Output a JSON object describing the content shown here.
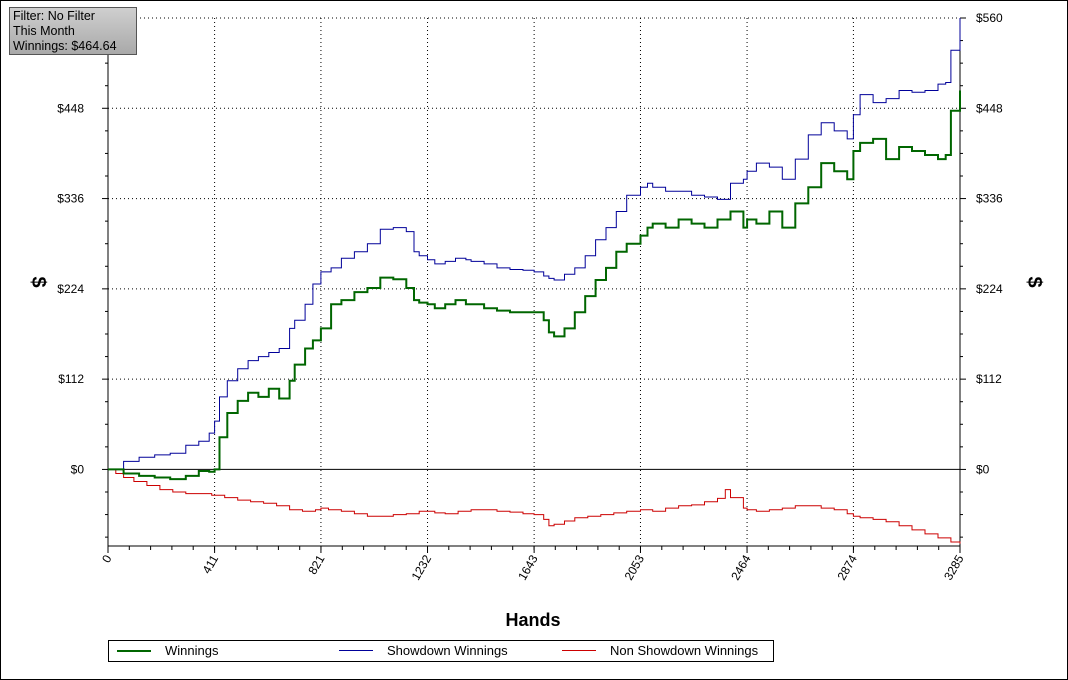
{
  "info_box": {
    "lines": [
      "Filter: No Filter",
      "This Month",
      "Winnings: $464.64"
    ]
  },
  "legend": {
    "items": [
      {
        "label": "Winnings",
        "color": "#006600"
      },
      {
        "label": "Showdown Winnings",
        "color": "#000099"
      },
      {
        "label": "Non Showdown Winnings",
        "color": "#cc0000"
      }
    ]
  },
  "chart_data": {
    "type": "line",
    "xlabel": "Hands",
    "ylabel": "$",
    "xlim": [
      0,
      3285
    ],
    "ylim": [
      -95,
      560
    ],
    "x_ticks": [
      "0",
      "411",
      "821",
      "1232",
      "1643",
      "2053",
      "2464",
      "2874",
      "3285"
    ],
    "y_ticks": [
      {
        "value": 0,
        "label": "$0"
      },
      {
        "value": 112,
        "label": "$112"
      },
      {
        "value": 224,
        "label": "$224"
      },
      {
        "value": 336,
        "label": "$336"
      },
      {
        "value": 448,
        "label": "$448"
      },
      {
        "value": 560,
        "label": "$560"
      }
    ],
    "grid": true,
    "legend_position": "bottom",
    "series": [
      {
        "name": "Winnings",
        "color": "#006600",
        "x": [
          0,
          60,
          120,
          180,
          240,
          300,
          350,
          390,
          411,
          430,
          460,
          500,
          540,
          580,
          620,
          660,
          700,
          720,
          760,
          790,
          821,
          860,
          900,
          950,
          1000,
          1050,
          1100,
          1150,
          1180,
          1200,
          1232,
          1260,
          1300,
          1340,
          1380,
          1400,
          1450,
          1500,
          1550,
          1600,
          1643,
          1680,
          1700,
          1720,
          1760,
          1800,
          1840,
          1880,
          1920,
          1960,
          2000,
          2053,
          2080,
          2100,
          2150,
          2200,
          2250,
          2300,
          2350,
          2400,
          2450,
          2464,
          2500,
          2550,
          2600,
          2650,
          2700,
          2750,
          2800,
          2850,
          2874,
          2900,
          2950,
          3000,
          3050,
          3100,
          3150,
          3200,
          3230,
          3250,
          3285
        ],
        "y": [
          0,
          -5,
          -8,
          -10,
          -12,
          -8,
          -2,
          -3,
          0,
          40,
          70,
          85,
          95,
          90,
          100,
          88,
          110,
          130,
          150,
          160,
          175,
          205,
          210,
          220,
          225,
          238,
          236,
          225,
          210,
          207,
          205,
          200,
          205,
          210,
          205,
          205,
          200,
          197,
          195,
          195,
          195,
          185,
          170,
          165,
          175,
          195,
          215,
          235,
          250,
          270,
          280,
          290,
          300,
          305,
          300,
          310,
          305,
          300,
          310,
          320,
          300,
          310,
          305,
          320,
          300,
          330,
          350,
          380,
          370,
          360,
          395,
          405,
          410,
          385,
          400,
          395,
          390,
          385,
          390,
          445,
          470
        ]
      },
      {
        "name": "Showdown Winnings",
        "color": "#000099",
        "x": [
          0,
          60,
          120,
          180,
          240,
          300,
          350,
          390,
          411,
          430,
          460,
          500,
          540,
          580,
          620,
          660,
          700,
          720,
          760,
          790,
          821,
          860,
          900,
          950,
          1000,
          1050,
          1100,
          1150,
          1180,
          1200,
          1232,
          1260,
          1300,
          1340,
          1380,
          1400,
          1450,
          1500,
          1550,
          1600,
          1643,
          1680,
          1700,
          1720,
          1760,
          1800,
          1840,
          1880,
          1920,
          1960,
          2000,
          2053,
          2080,
          2100,
          2150,
          2200,
          2250,
          2300,
          2350,
          2400,
          2450,
          2464,
          2500,
          2550,
          2600,
          2650,
          2700,
          2750,
          2800,
          2850,
          2874,
          2900,
          2950,
          3000,
          3050,
          3100,
          3150,
          3200,
          3230,
          3250,
          3285
        ],
        "y": [
          0,
          10,
          15,
          18,
          20,
          30,
          35,
          45,
          60,
          90,
          110,
          125,
          135,
          140,
          145,
          150,
          175,
          185,
          205,
          230,
          245,
          250,
          262,
          270,
          280,
          298,
          300,
          295,
          270,
          265,
          260,
          255,
          258,
          262,
          260,
          258,
          255,
          250,
          248,
          247,
          245,
          240,
          237,
          235,
          242,
          250,
          265,
          285,
          300,
          320,
          340,
          350,
          355,
          350,
          345,
          345,
          340,
          338,
          335,
          355,
          360,
          370,
          380,
          375,
          360,
          385,
          415,
          430,
          420,
          410,
          440,
          465,
          455,
          460,
          470,
          468,
          470,
          478,
          480,
          520,
          560
        ]
      },
      {
        "name": "Non Showdown Winnings",
        "color": "#cc0000",
        "x": [
          0,
          30,
          60,
          100,
          150,
          200,
          250,
          300,
          350,
          400,
          450,
          500,
          550,
          600,
          650,
          700,
          750,
          800,
          821,
          850,
          900,
          950,
          1000,
          1050,
          1100,
          1150,
          1200,
          1232,
          1260,
          1300,
          1350,
          1400,
          1450,
          1500,
          1550,
          1600,
          1643,
          1680,
          1700,
          1720,
          1760,
          1800,
          1850,
          1900,
          1950,
          2000,
          2053,
          2100,
          2150,
          2200,
          2250,
          2300,
          2350,
          2380,
          2400,
          2450,
          2464,
          2500,
          2550,
          2600,
          2650,
          2700,
          2750,
          2800,
          2850,
          2874,
          2900,
          2950,
          3000,
          3050,
          3100,
          3150,
          3200,
          3250,
          3285
        ],
        "y": [
          0,
          -5,
          -10,
          -15,
          -20,
          -25,
          -28,
          -30,
          -30,
          -32,
          -35,
          -38,
          -40,
          -42,
          -45,
          -50,
          -52,
          -50,
          -48,
          -50,
          -52,
          -55,
          -58,
          -58,
          -56,
          -55,
          -52,
          -52,
          -54,
          -55,
          -52,
          -50,
          -50,
          -52,
          -53,
          -55,
          -56,
          -62,
          -70,
          -68,
          -64,
          -60,
          -58,
          -56,
          -54,
          -52,
          -50,
          -52,
          -48,
          -45,
          -44,
          -40,
          -36,
          -25,
          -35,
          -48,
          -50,
          -52,
          -50,
          -48,
          -45,
          -45,
          -48,
          -50,
          -55,
          -58,
          -60,
          -62,
          -65,
          -70,
          -75,
          -80,
          -85,
          -90,
          -92
        ]
      }
    ]
  }
}
